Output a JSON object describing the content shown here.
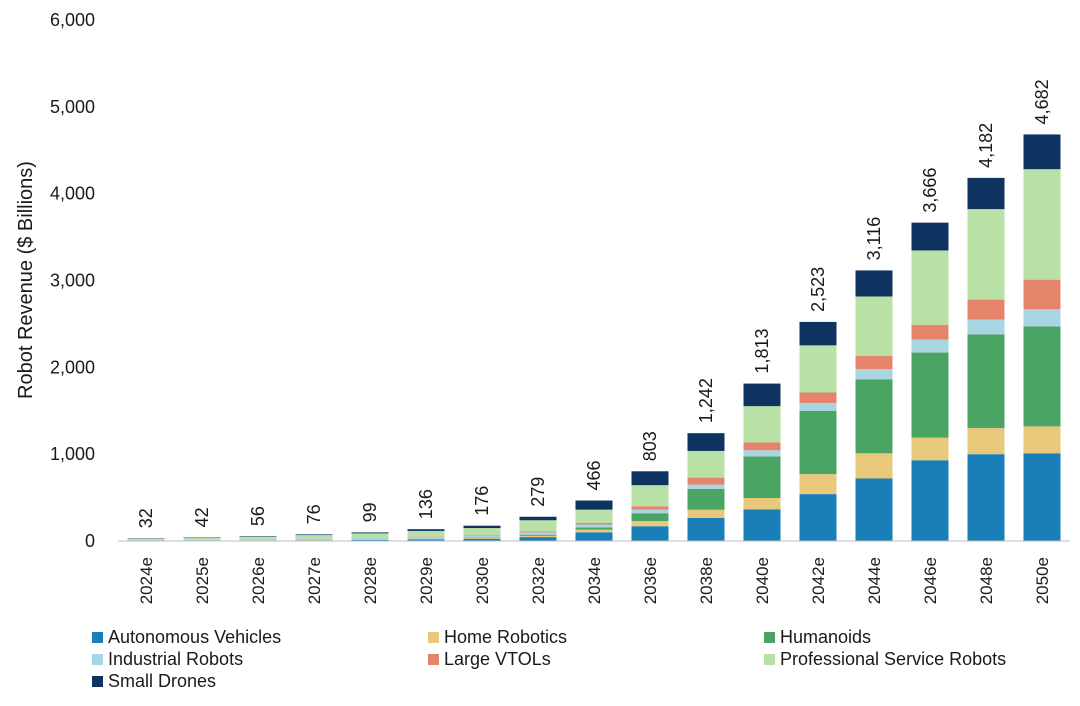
{
  "chart_data": {
    "type": "bar",
    "stacked": true,
    "title": "",
    "xlabel": "",
    "ylabel": "Robot Revenue ($ Billions)",
    "ylim": [
      0,
      6000
    ],
    "yticks": [
      0,
      1000,
      2000,
      3000,
      4000,
      5000,
      6000
    ],
    "ytick_labels": [
      "0",
      "1,000",
      "2,000",
      "3,000",
      "4,000",
      "5,000",
      "6,000"
    ],
    "categories": [
      "2024e",
      "2025e",
      "2026e",
      "2027e",
      "2028e",
      "2029e",
      "2030e",
      "2032e",
      "2034e",
      "2036e",
      "2038e",
      "2040e",
      "2042e",
      "2044e",
      "2046e",
      "2048e",
      "2050e"
    ],
    "totals": [
      32,
      42,
      56,
      76,
      99,
      136,
      176,
      279,
      466,
      803,
      1242,
      1813,
      2523,
      3116,
      3666,
      4182,
      4682
    ],
    "total_labels": [
      "32",
      "42",
      "56",
      "76",
      "99",
      "136",
      "176",
      "279",
      "466",
      "803",
      "1,242",
      "1,813",
      "2,523",
      "3,116",
      "3,666",
      "4,182",
      "4,682"
    ],
    "series": [
      {
        "name": "Autonomous Vehicles",
        "color": "#1a7fb8",
        "values": [
          2,
          3,
          5,
          8,
          12,
          18,
          26,
          45,
          100,
          170,
          265,
          365,
          540,
          720,
          930,
          1000,
          1010
        ]
      },
      {
        "name": "Home Robotics",
        "color": "#e8c87a",
        "values": [
          1,
          1,
          2,
          3,
          4,
          6,
          8,
          14,
          30,
          60,
          95,
          130,
          230,
          290,
          260,
          300,
          310
        ]
      },
      {
        "name": "Humanoids",
        "color": "#4aa564",
        "values": [
          0,
          0,
          1,
          1,
          2,
          3,
          5,
          10,
          25,
          90,
          240,
          480,
          730,
          850,
          980,
          1080,
          1150
        ]
      },
      {
        "name": "Industrial Robots",
        "color": "#a8d5e2",
        "values": [
          12,
          14,
          16,
          18,
          20,
          22,
          25,
          30,
          35,
          40,
          50,
          70,
          90,
          120,
          150,
          170,
          200
        ]
      },
      {
        "name": "Large VTOLs",
        "color": "#e5846a",
        "values": [
          0,
          0,
          0,
          1,
          2,
          3,
          5,
          10,
          20,
          40,
          80,
          90,
          120,
          150,
          170,
          230,
          340
        ]
      },
      {
        "name": "Professional Service Robots",
        "color": "#b9e0a5",
        "values": [
          13,
          19,
          26,
          37,
          48,
          64,
          80,
          130,
          151,
          243,
          307,
          418,
          543,
          686,
          856,
          1042,
          1272
        ]
      },
      {
        "name": "Small Drones",
        "color": "#0e3360",
        "values": [
          4,
          5,
          6,
          8,
          11,
          20,
          27,
          40,
          105,
          160,
          205,
          260,
          270,
          300,
          320,
          360,
          400
        ]
      }
    ],
    "legend_position": "bottom",
    "grid": false
  }
}
